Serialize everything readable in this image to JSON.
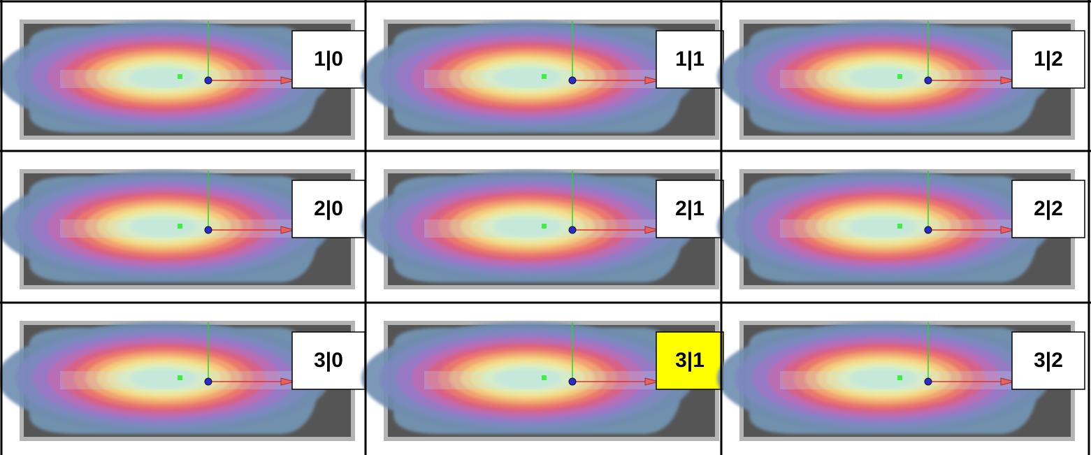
{
  "grid": {
    "rows": [
      [
        {
          "label": "1|0",
          "highlighted": false
        },
        {
          "label": "1|1",
          "highlighted": false
        },
        {
          "label": "1|2",
          "highlighted": false
        }
      ],
      [
        {
          "label": "2|0",
          "highlighted": false
        },
        {
          "label": "2|1",
          "highlighted": false
        },
        {
          "label": "2|2",
          "highlighted": false
        }
      ],
      [
        {
          "label": "3|0",
          "highlighted": false
        },
        {
          "label": "3|1",
          "highlighted": true
        },
        {
          "label": "3|2",
          "highlighted": false
        }
      ]
    ]
  }
}
